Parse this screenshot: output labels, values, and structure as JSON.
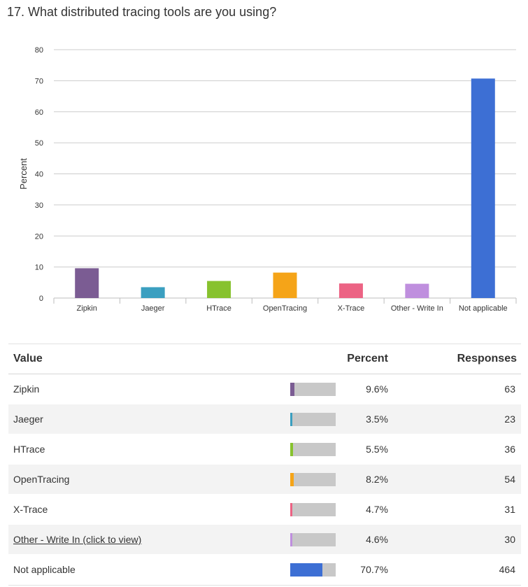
{
  "question": {
    "title": "17. What distributed tracing tools are you using?"
  },
  "chart_data": {
    "type": "bar",
    "title": "17. What distributed tracing tools are you using?",
    "ylabel": "Percent",
    "xlabel": "",
    "ylim": [
      0,
      80
    ],
    "yticks": [
      0,
      10,
      20,
      30,
      40,
      50,
      60,
      70,
      80
    ],
    "grid": true,
    "categories": [
      "Zipkin",
      "Jaeger",
      "HTrace",
      "OpenTracing",
      "X-Trace",
      "Other - Write In",
      "Not applicable"
    ],
    "values": [
      9.6,
      3.5,
      5.5,
      8.2,
      4.7,
      4.6,
      70.7
    ],
    "colors": [
      "#7b5c93",
      "#3b9fc0",
      "#87c22e",
      "#f5a418",
      "#ec6384",
      "#bf8fde",
      "#3d6fd4"
    ]
  },
  "table": {
    "headers": {
      "value": "Value",
      "percent": "Percent",
      "responses": "Responses"
    },
    "rows": [
      {
        "value": "Zipkin",
        "percent": "9.6%",
        "responses": "63",
        "fraction": 0.096,
        "color": "#7b5c93",
        "link": false
      },
      {
        "value": "Jaeger",
        "percent": "3.5%",
        "responses": "23",
        "fraction": 0.035,
        "color": "#3b9fc0",
        "link": false
      },
      {
        "value": "HTrace",
        "percent": "5.5%",
        "responses": "36",
        "fraction": 0.055,
        "color": "#87c22e",
        "link": false
      },
      {
        "value": "OpenTracing",
        "percent": "8.2%",
        "responses": "54",
        "fraction": 0.082,
        "color": "#f5a418",
        "link": false
      },
      {
        "value": "X-Trace",
        "percent": "4.7%",
        "responses": "31",
        "fraction": 0.047,
        "color": "#ec6384",
        "link": false
      },
      {
        "value": "Other - Write In (click to view)",
        "percent": "4.6%",
        "responses": "30",
        "fraction": 0.046,
        "color": "#bf8fde",
        "link": true
      },
      {
        "value": "Not applicable",
        "percent": "70.7%",
        "responses": "464",
        "fraction": 0.707,
        "color": "#3d6fd4",
        "link": false
      }
    ]
  }
}
